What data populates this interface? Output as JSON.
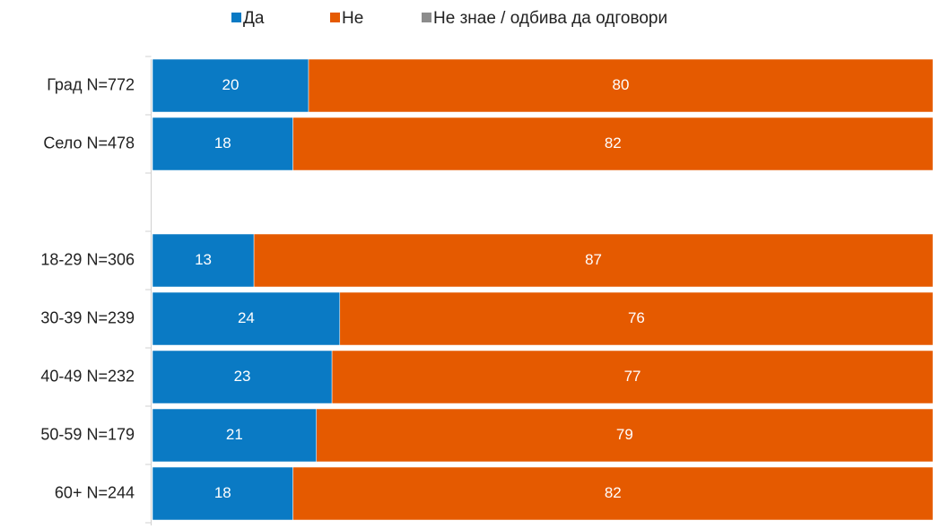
{
  "chart_data": {
    "type": "stacked_bar_horizontal",
    "categories": [
      "Град N=772",
      "Село N=478",
      null,
      "18-29 N=306",
      "30-39 N=239",
      "40-49 N=232",
      "50-59 N=179",
      "60+ N=244"
    ],
    "series": [
      {
        "name": "Да",
        "color": "#0a7ac4",
        "values": [
          20,
          18,
          null,
          13,
          24,
          23,
          21,
          18
        ]
      },
      {
        "name": "Не",
        "color": "#e55a00",
        "values": [
          80,
          82,
          null,
          87,
          76,
          77,
          79,
          82
        ]
      },
      {
        "name": "Не знае / одбива да одговори",
        "color": "#8c8c8c",
        "values": [
          0,
          0,
          null,
          0,
          0,
          0,
          0,
          0
        ]
      }
    ],
    "xlim": [
      0,
      100
    ],
    "legend": "top",
    "value_labels_shown": [
      true,
      true,
      false
    ]
  }
}
